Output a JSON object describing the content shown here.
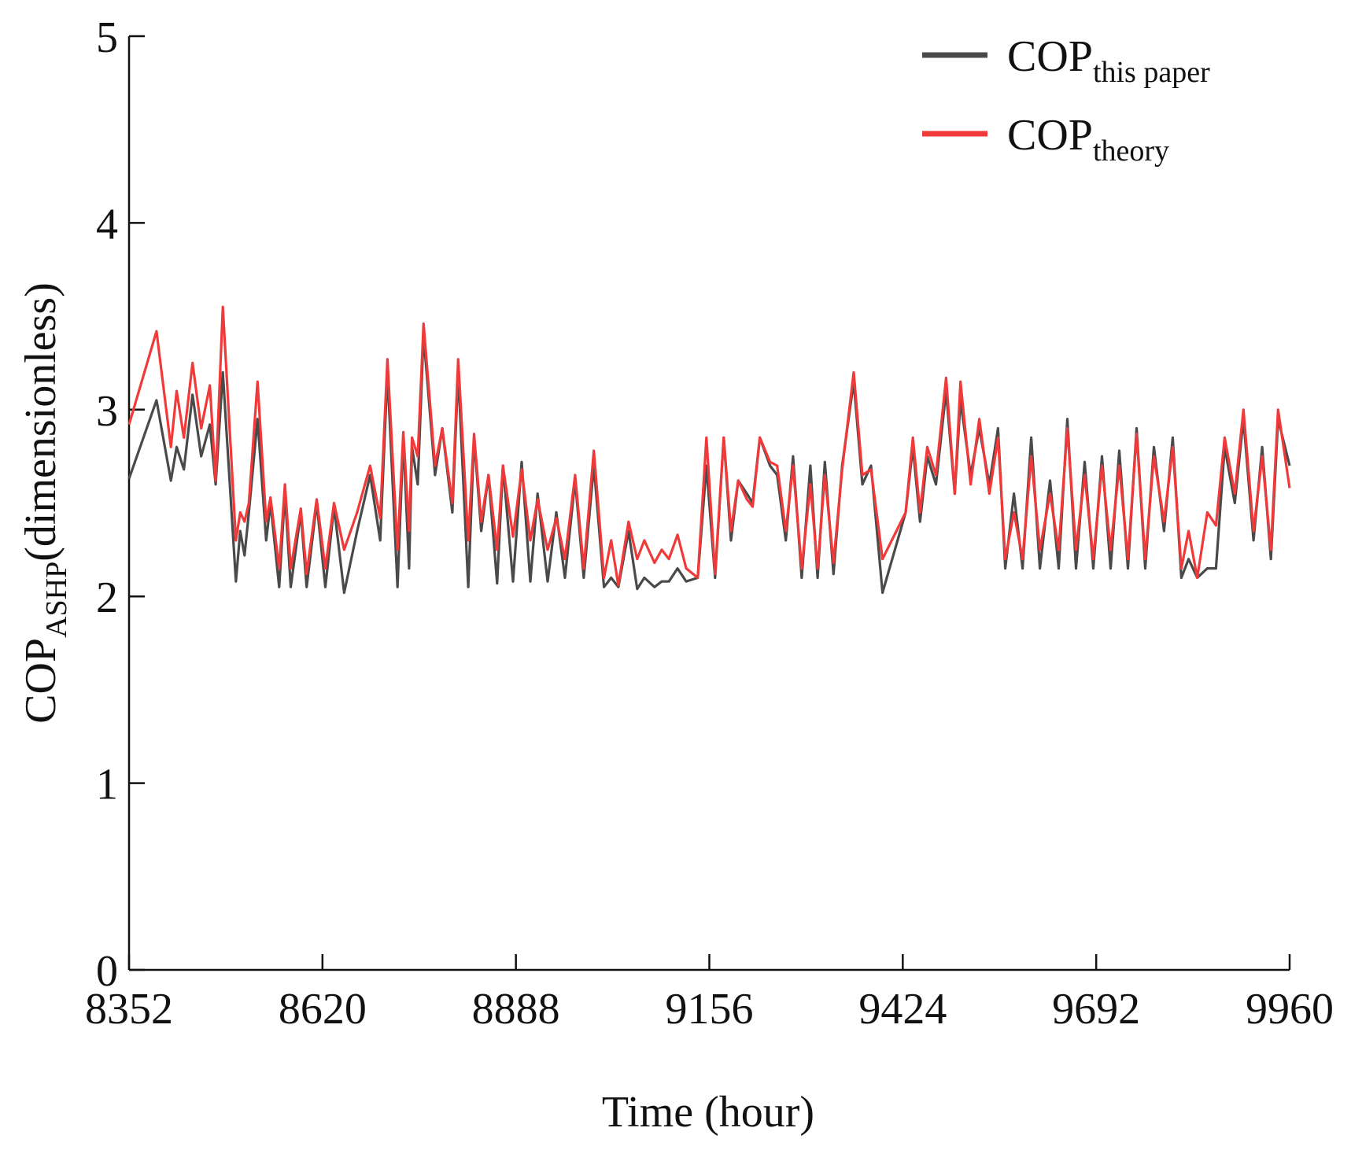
{
  "chart_data": {
    "type": "line",
    "xlabel": "Time (hour)",
    "ylabel": {
      "main": "COP",
      "sub": "ASHP",
      "rest": "(dimensionless)"
    },
    "xlim": [
      8352,
      9960
    ],
    "xticks": [
      8352,
      8620,
      8888,
      9156,
      9424,
      9692,
      9960
    ],
    "ylim": [
      0,
      5
    ],
    "yticks": [
      0,
      1,
      2,
      3,
      4,
      5
    ],
    "legend": "upper right",
    "x": [
      8352,
      8390,
      8410,
      8418,
      8428,
      8440,
      8452,
      8464,
      8472,
      8482,
      8500,
      8506,
      8512,
      8518,
      8530,
      8542,
      8548,
      8560,
      8568,
      8576,
      8590,
      8598,
      8612,
      8624,
      8636,
      8650,
      8668,
      8686,
      8700,
      8710,
      8724,
      8732,
      8740,
      8744,
      8752,
      8760,
      8776,
      8786,
      8800,
      8808,
      8822,
      8830,
      8840,
      8850,
      8862,
      8870,
      8884,
      8896,
      8908,
      8918,
      8932,
      8944,
      8956,
      8970,
      8982,
      8996,
      9010,
      9020,
      9030,
      9044,
      9056,
      9066,
      9080,
      9090,
      9100,
      9112,
      9124,
      9140,
      9152,
      9164,
      9176,
      9186,
      9196,
      9208,
      9216,
      9226,
      9240,
      9250,
      9262,
      9272,
      9284,
      9296,
      9306,
      9316,
      9328,
      9340,
      9356,
      9368,
      9380,
      9396,
      9428,
      9438,
      9448,
      9458,
      9470,
      9484,
      9496,
      9504,
      9518,
      9530,
      9544,
      9556,
      9566,
      9578,
      9590,
      9602,
      9614,
      9628,
      9640,
      9652,
      9664,
      9676,
      9688,
      9700,
      9712,
      9724,
      9736,
      9748,
      9760,
      9772,
      9786,
      9798,
      9810,
      9820,
      9832,
      9846,
      9858,
      9870,
      9884,
      9896,
      9910,
      9922,
      9934,
      9944,
      9960
    ],
    "series": [
      {
        "name": "COP",
        "name_sub": "this paper",
        "color": "#4a4a4a",
        "values": [
          2.63,
          3.05,
          2.62,
          2.8,
          2.68,
          3.08,
          2.75,
          2.92,
          2.6,
          3.2,
          2.08,
          2.35,
          2.22,
          2.45,
          2.95,
          2.3,
          2.5,
          2.05,
          2.55,
          2.05,
          2.45,
          2.05,
          2.5,
          2.05,
          2.48,
          2.02,
          2.35,
          2.65,
          2.3,
          3.2,
          2.05,
          2.85,
          2.15,
          2.8,
          2.6,
          3.4,
          2.65,
          2.9,
          2.45,
          3.2,
          2.05,
          2.85,
          2.35,
          2.65,
          2.07,
          2.7,
          2.08,
          2.72,
          2.08,
          2.55,
          2.08,
          2.45,
          2.1,
          2.62,
          2.1,
          2.7,
          2.05,
          2.1,
          2.05,
          2.35,
          2.04,
          2.1,
          2.05,
          2.08,
          2.08,
          2.15,
          2.08,
          2.1,
          2.7,
          2.1,
          2.85,
          2.3,
          2.62,
          2.55,
          2.5,
          2.85,
          2.7,
          2.65,
          2.3,
          2.75,
          2.1,
          2.7,
          2.1,
          2.72,
          2.12,
          2.7,
          3.15,
          2.6,
          2.7,
          2.02,
          2.45,
          2.8,
          2.4,
          2.75,
          2.6,
          3.1,
          2.55,
          3.05,
          2.65,
          2.9,
          2.6,
          2.9,
          2.15,
          2.55,
          2.15,
          2.85,
          2.15,
          2.62,
          2.15,
          2.95,
          2.15,
          2.72,
          2.15,
          2.75,
          2.15,
          2.78,
          2.15,
          2.9,
          2.15,
          2.8,
          2.35,
          2.85,
          2.1,
          2.2,
          2.1,
          2.15,
          2.15,
          2.8,
          2.5,
          2.95,
          2.3,
          2.8,
          2.2,
          2.95,
          2.7
        ]
      },
      {
        "name": "COP",
        "name_sub": "theory",
        "color": "#f03a3a",
        "values": [
          2.92,
          3.42,
          2.8,
          3.1,
          2.85,
          3.25,
          2.9,
          3.13,
          2.62,
          3.55,
          2.3,
          2.45,
          2.4,
          2.5,
          3.15,
          2.4,
          2.53,
          2.15,
          2.6,
          2.15,
          2.47,
          2.12,
          2.52,
          2.15,
          2.5,
          2.25,
          2.45,
          2.7,
          2.42,
          3.27,
          2.25,
          2.88,
          2.35,
          2.85,
          2.75,
          3.46,
          2.7,
          2.9,
          2.5,
          3.27,
          2.3,
          2.87,
          2.4,
          2.65,
          2.25,
          2.7,
          2.32,
          2.68,
          2.3,
          2.52,
          2.25,
          2.42,
          2.2,
          2.65,
          2.15,
          2.78,
          2.1,
          2.3,
          2.06,
          2.4,
          2.2,
          2.3,
          2.18,
          2.25,
          2.2,
          2.33,
          2.15,
          2.1,
          2.85,
          2.12,
          2.85,
          2.35,
          2.62,
          2.52,
          2.48,
          2.85,
          2.72,
          2.7,
          2.35,
          2.7,
          2.15,
          2.6,
          2.15,
          2.65,
          2.18,
          2.68,
          3.2,
          2.65,
          2.68,
          2.2,
          2.45,
          2.85,
          2.45,
          2.8,
          2.65,
          3.17,
          2.55,
          3.15,
          2.6,
          2.95,
          2.55,
          2.85,
          2.2,
          2.45,
          2.2,
          2.75,
          2.25,
          2.55,
          2.25,
          2.9,
          2.25,
          2.65,
          2.2,
          2.7,
          2.25,
          2.7,
          2.2,
          2.87,
          2.2,
          2.75,
          2.4,
          2.8,
          2.15,
          2.35,
          2.1,
          2.45,
          2.38,
          2.85,
          2.55,
          3.0,
          2.35,
          2.75,
          2.25,
          3.0,
          2.58
        ]
      }
    ]
  }
}
